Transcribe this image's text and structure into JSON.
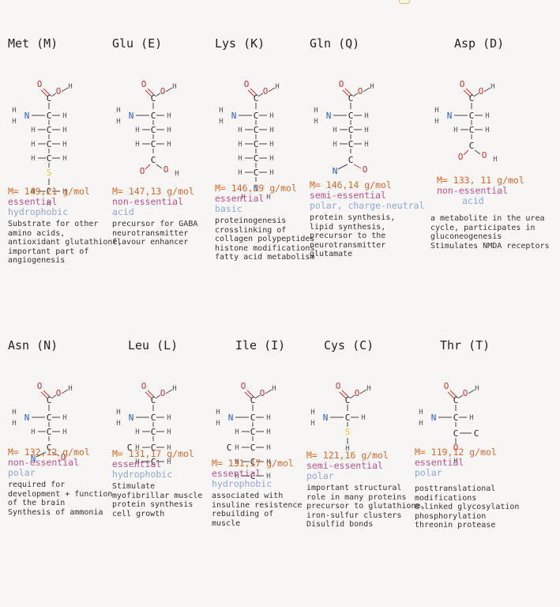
{
  "amino_acids": [
    {
      "name": "Met (M)",
      "mass": "M= 149,21 g/mol",
      "class": "essential",
      "property": "hydrophobic",
      "description": [
        "Substrate for other",
        "amino acids,",
        "antioxidant glutathione,",
        "important part of",
        "angiogenesis"
      ]
    },
    {
      "name": "Glu (E)",
      "mass": "M= 147,13 g/mol",
      "class": "non-essential",
      "property": "acid",
      "description": [
        "precursor for GABA",
        "neurotransmitter",
        "flavour enhancer"
      ]
    },
    {
      "name": "Lys (K)",
      "mass": "M= 146,19 g/mol",
      "class": "essential",
      "property": "basic",
      "description": [
        "proteinogenesis",
        "crosslinking of",
        "collagen polypeptides",
        "histone modifications",
        "fatty acid metabolism"
      ]
    },
    {
      "name": "Gln (Q)",
      "mass": "M= 146,14 g/mol",
      "class": "semi-essential",
      "property": "polar, charge-neutral",
      "description": [
        "protein synthesis,",
        "lipid synthesis,",
        "precursor to the",
        "neurotransmitter",
        "glutamate"
      ]
    },
    {
      "name": "Asp (D)",
      "mass": "M= 133, 11 g/mol",
      "class": "non-essential",
      "property": "acid",
      "description": [
        "a metabolite in the urea",
        "cycle, participates in",
        "gluconeogenesis",
        "Stimulates NMDA receptors"
      ]
    },
    {
      "name": "Asn (N)",
      "mass": "M= 132,12 g/mol",
      "class": "non-essential",
      "property": "polar",
      "description": [
        "required for",
        "development + function",
        "of the brain",
        "Synthesis of ammonia"
      ]
    },
    {
      "name": "Leu (L)",
      "mass": "M= 131,17 g/mol",
      "class": "essential",
      "property": "hydrophobic",
      "description": [
        "Stimulate",
        "myofibrillar muscle",
        "protein synthesis",
        "cell growth"
      ]
    },
    {
      "name": "Ile (I)",
      "mass": "M= 131,17 g/mol",
      "class": "essential",
      "property": "hydrophobic",
      "description": [
        "associated with",
        "insuline resistence",
        "rebuilding of",
        "muscle"
      ]
    },
    {
      "name": "Cys (C)",
      "mass": "M= 121,16 g/mol",
      "class": "semi-essential",
      "property": "polar",
      "description": [
        "important structural",
        "role in many proteins",
        "precursor to glutathione,",
        "iron-sulfur clusters",
        "Disulfid bonds"
      ]
    },
    {
      "name": "Thr (T)",
      "mass": "M= 119,12 g/mol",
      "class": "essential",
      "property": "polar",
      "description": [
        "posttranslational",
        "modifications",
        "O-linked glycosylation",
        "phosphorylation",
        "threonin protease"
      ]
    }
  ],
  "atoms": {
    "O": "O",
    "N": "N",
    "S": "S",
    "C": "C",
    "H": "H"
  },
  "colors": {
    "oxygen": "#d0312d",
    "nitrogen": "#2a5bd7",
    "sulfur": "#e8c43a",
    "mass": "#d9692a",
    "class": "#c4508b",
    "property": "#8fa6d8",
    "ink": "#222222"
  }
}
